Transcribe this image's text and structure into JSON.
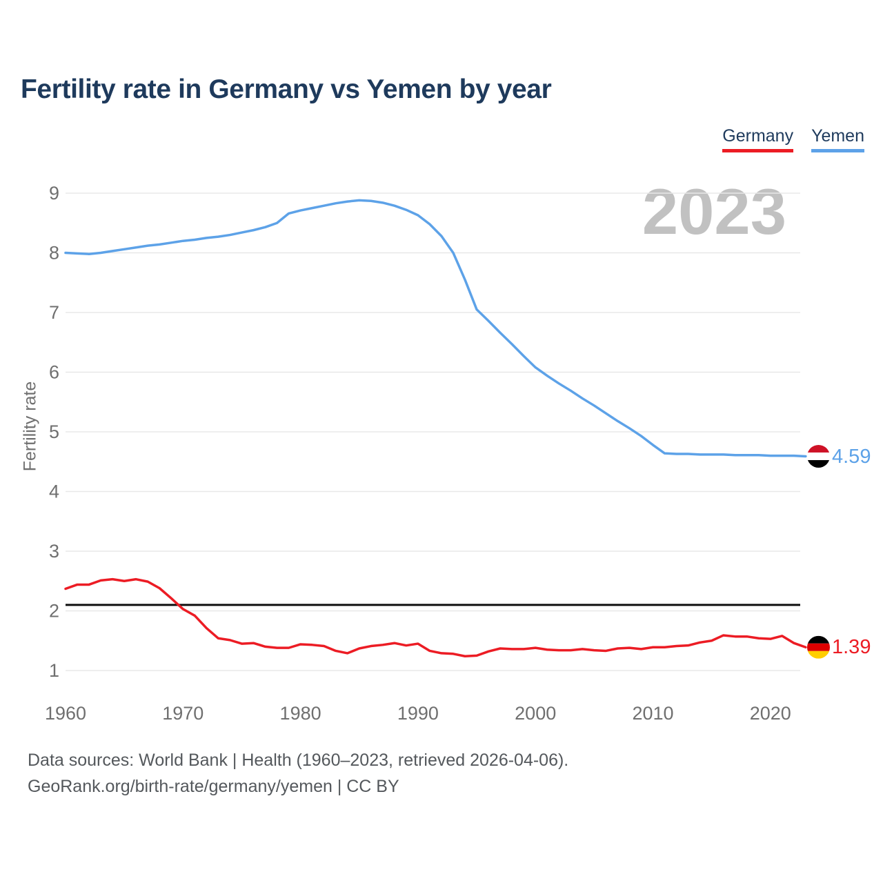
{
  "header": {
    "title": "Fertility rate in Germany vs Yemen by year"
  },
  "legend": [
    {
      "label": "Germany",
      "color": "#ec1c24"
    },
    {
      "label": "Yemen",
      "color": "#5da2e8"
    }
  ],
  "watermark": "2023",
  "footer": {
    "line1": "Data sources: World Bank | Health (1960–2023, retrieved 2026-04-06).",
    "line2": "GeoRank.org/birth-rate/germany/yemen | CC BY"
  },
  "chart_data": {
    "type": "line",
    "title": "Fertility rate in Germany vs Yemen by year",
    "xlabel": "",
    "ylabel": "Fertility rate",
    "ylim": [
      1,
      9
    ],
    "xlim": [
      1960,
      2023
    ],
    "y_ticks": [
      1,
      2,
      3,
      4,
      5,
      6,
      7,
      8,
      9
    ],
    "x_ticks": [
      1960,
      1970,
      1980,
      1990,
      2000,
      2010,
      2020
    ],
    "grid": "horizontal",
    "legend_position": "top-right",
    "reference_line": {
      "value": 2.1,
      "color": "#0d0d0d"
    },
    "x": [
      1960,
      1961,
      1962,
      1963,
      1964,
      1965,
      1966,
      1967,
      1968,
      1969,
      1970,
      1971,
      1972,
      1973,
      1974,
      1975,
      1976,
      1977,
      1978,
      1979,
      1980,
      1981,
      1982,
      1983,
      1984,
      1985,
      1986,
      1987,
      1988,
      1989,
      1990,
      1991,
      1992,
      1993,
      1994,
      1995,
      1996,
      1997,
      1998,
      1999,
      2000,
      2001,
      2002,
      2003,
      2004,
      2005,
      2006,
      2007,
      2008,
      2009,
      2010,
      2011,
      2012,
      2013,
      2014,
      2015,
      2016,
      2017,
      2018,
      2019,
      2020,
      2021,
      2022,
      2023
    ],
    "series": [
      {
        "name": "Germany",
        "color": "#ec1c24",
        "end_label": "1.39",
        "flag": [
          "#000000",
          "#dd0000",
          "#ffce00"
        ],
        "values": [
          2.37,
          2.44,
          2.44,
          2.51,
          2.53,
          2.5,
          2.53,
          2.49,
          2.38,
          2.21,
          2.03,
          1.92,
          1.71,
          1.54,
          1.51,
          1.45,
          1.46,
          1.4,
          1.38,
          1.38,
          1.44,
          1.43,
          1.41,
          1.33,
          1.29,
          1.37,
          1.41,
          1.43,
          1.46,
          1.42,
          1.45,
          1.33,
          1.29,
          1.28,
          1.24,
          1.25,
          1.32,
          1.37,
          1.36,
          1.36,
          1.38,
          1.35,
          1.34,
          1.34,
          1.36,
          1.34,
          1.33,
          1.37,
          1.38,
          1.36,
          1.39,
          1.39,
          1.41,
          1.42,
          1.47,
          1.5,
          1.59,
          1.57,
          1.57,
          1.54,
          1.53,
          1.58,
          1.46,
          1.39
        ]
      },
      {
        "name": "Yemen",
        "color": "#5da2e8",
        "end_label": "4.59",
        "flag": [
          "#ce1126",
          "#ffffff",
          "#000000"
        ],
        "values": [
          8.0,
          7.99,
          7.98,
          8.0,
          8.03,
          8.06,
          8.09,
          8.12,
          8.14,
          8.17,
          8.2,
          8.22,
          8.25,
          8.27,
          8.3,
          8.34,
          8.38,
          8.43,
          8.5,
          8.66,
          8.71,
          8.75,
          8.79,
          8.83,
          8.86,
          8.88,
          8.87,
          8.84,
          8.79,
          8.72,
          8.63,
          8.48,
          8.28,
          8.0,
          7.55,
          7.05,
          6.86,
          6.66,
          6.47,
          6.27,
          6.08,
          5.94,
          5.81,
          5.69,
          5.56,
          5.44,
          5.31,
          5.18,
          5.06,
          4.93,
          4.78,
          4.64,
          4.63,
          4.63,
          4.62,
          4.62,
          4.62,
          4.61,
          4.61,
          4.61,
          4.6,
          4.6,
          4.6,
          4.59
        ]
      }
    ],
    "style": {
      "grid_color": "#e8e8e8",
      "axis_text_color": "#6f6f6f",
      "title_color": "#1e3a5c",
      "watermark_color": "#c1c1c1",
      "footer_color": "#54585c"
    }
  }
}
